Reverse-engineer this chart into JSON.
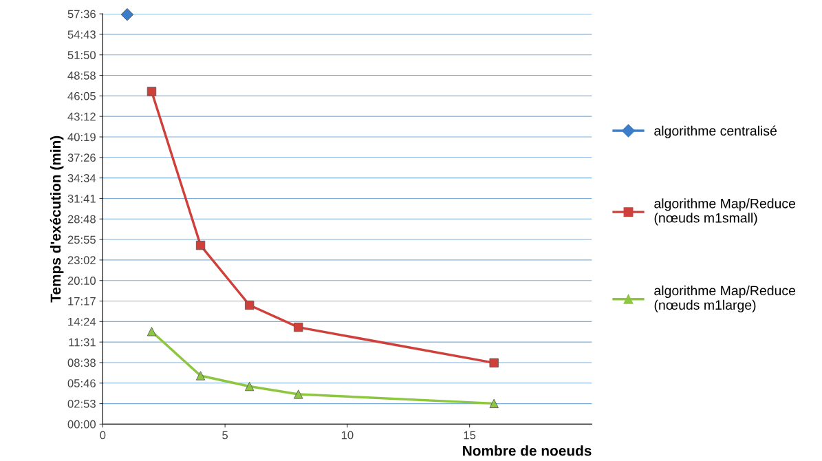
{
  "chart_data": {
    "type": "line",
    "xlabel": "Nombre de noeuds",
    "ylabel": "Temps d'exécution (min)",
    "xlim": [
      0,
      20
    ],
    "xticks": [
      0,
      5,
      10,
      15
    ],
    "ylim": [
      0,
      57.6
    ],
    "yticks": [
      {
        "value": 0,
        "label": "00:00"
      },
      {
        "value": 2.88,
        "label": "02:53"
      },
      {
        "value": 5.76,
        "label": "05:46"
      },
      {
        "value": 8.64,
        "label": "08:38"
      },
      {
        "value": 11.52,
        "label": "11:31"
      },
      {
        "value": 14.4,
        "label": "14:24"
      },
      {
        "value": 17.28,
        "label": "17:17"
      },
      {
        "value": 20.16,
        "label": "20:10"
      },
      {
        "value": 23.04,
        "label": "23:02"
      },
      {
        "value": 25.92,
        "label": "25:55"
      },
      {
        "value": 28.8,
        "label": "28:48"
      },
      {
        "value": 31.68,
        "label": "31:41"
      },
      {
        "value": 34.56,
        "label": "34:34"
      },
      {
        "value": 37.44,
        "label": "37:26"
      },
      {
        "value": 40.32,
        "label": "40:19"
      },
      {
        "value": 43.2,
        "label": "43:12"
      },
      {
        "value": 46.08,
        "label": "46:05"
      },
      {
        "value": 48.96,
        "label": "48:58"
      },
      {
        "value": 51.84,
        "label": "51:50"
      },
      {
        "value": 54.72,
        "label": "54:43"
      },
      {
        "value": 57.6,
        "label": "57:36"
      }
    ],
    "grid": "y",
    "legend": "right",
    "series": [
      {
        "name": "algorithme centralisé",
        "color": "#3b7dc8",
        "marker": "diamond",
        "x": [
          1
        ],
        "values": [
          57.5
        ]
      },
      {
        "name": "algorithme Map/Reduce\n(nœuds m1small)",
        "color": "#d0403a",
        "marker": "square",
        "x": [
          2,
          4,
          6,
          8,
          16
        ],
        "values": [
          46.7,
          25.1,
          16.7,
          13.6,
          8.6
        ]
      },
      {
        "name": "algorithme Map/Reduce\n(nœuds m1large)",
        "color": "#8dc63f",
        "marker": "triangle",
        "x": [
          2,
          4,
          6,
          8,
          16
        ],
        "values": [
          13.0,
          6.8,
          5.3,
          4.2,
          2.9
        ]
      }
    ]
  }
}
